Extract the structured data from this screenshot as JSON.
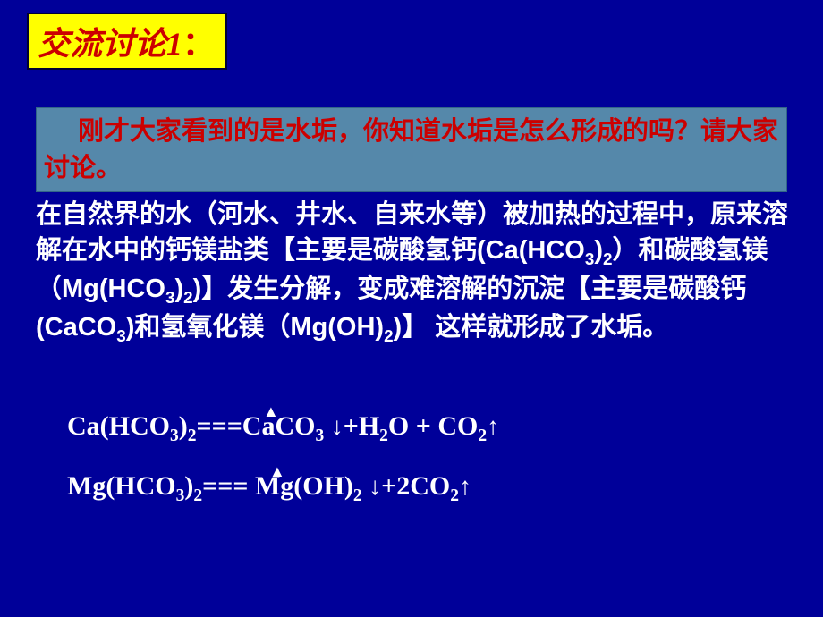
{
  "colors": {
    "background": "#000099",
    "header_bg": "#ffff00",
    "header_text": "#cc0000",
    "question_bg": "#5588aa",
    "question_text": "#cc0000",
    "body_text": "#ffffff"
  },
  "header": {
    "title_text": "交流讨论",
    "number": "1",
    "colon": "："
  },
  "question": {
    "text": "刚才大家看到的是水垢，你知道水垢是怎么形成的吗？请大家讨论。"
  },
  "explanation": {
    "part1": "在自然界的水（河水、井水、自来水等）被加热的过程中，原来溶解在水中的钙镁盐类【主要是碳酸氢钙(Ca(HCO",
    "sub1": "3",
    "part2": ")",
    "sub2": "2",
    "part3": "）和碳酸氢镁（Mg(HCO",
    "sub3": "3",
    "part4": ")",
    "sub4": "2",
    "part5": ")】发生分解，变成难溶解的沉淀【主要是碳酸钙(CaCO",
    "sub5": "3",
    "part6": ")和氢氧化镁（Mg(OH)",
    "sub6": "2",
    "part7": ")】 这样就形成了水垢。"
  },
  "equation1": {
    "reactant": "Ca(HCO",
    "sub1": "3",
    "close1": ")",
    "sub2": "2",
    "equals": "===",
    "product1": "CaCO",
    "sub3": "3",
    "space1": "  ",
    "down": "↓",
    "plus1": "+H",
    "sub4": "2",
    "product2": "O  +  CO",
    "sub5": "2",
    "up": "↑",
    "triangle": "▲"
  },
  "equation2": {
    "reactant": "Mg(HCO",
    "sub1": "3",
    "close1": ")",
    "sub2": "2",
    "equals": "===  ",
    "product1": "Mg(OH)",
    "sub3": "2",
    "space1": "   ",
    "down": "↓",
    "plus1": "+2CO",
    "sub4": "2",
    "up": "↑",
    "triangle": "▲"
  }
}
